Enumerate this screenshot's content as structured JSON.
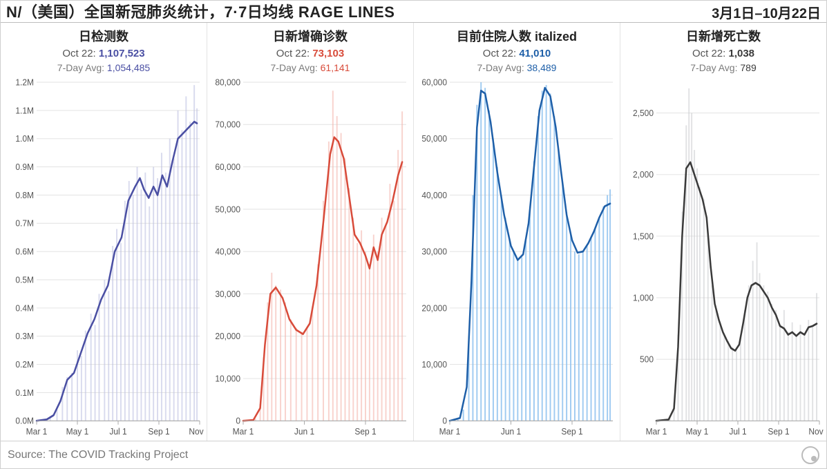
{
  "header": {
    "title_left": "N/（美国）全国新冠肺炎统计，7·7日均线 RAGE LINES",
    "title_right": "3月1日–10月22日"
  },
  "footer": {
    "source": "Source: The COVID Tracking Project"
  },
  "global": {
    "background": "#ffffff",
    "grid_color": "#e5e5e5",
    "axis_text_color": "#555555",
    "x_start": 0,
    "x_end": 240,
    "x_ticks_long": [
      {
        "pos": 0,
        "label": "Mar 1"
      },
      {
        "pos": 60,
        "label": "May 1"
      },
      {
        "pos": 120,
        "label": "Jul 1"
      },
      {
        "pos": 180,
        "label": "Sep 1"
      },
      {
        "pos": 240,
        "label": "Nov 1"
      }
    ],
    "x_ticks_short": [
      {
        "pos": 0,
        "label": "Mar 1"
      },
      {
        "pos": 90,
        "label": "Jun 1"
      },
      {
        "pos": 180,
        "label": "Sep 1"
      }
    ]
  },
  "panels": [
    {
      "id": "tests",
      "type": "area-line",
      "title": "日检测数",
      "current_date": "Oct 22",
      "current_value": "1,107,523",
      "avg_label": "7-Day Avg",
      "avg_value": "1,054,485",
      "accent": "#4a4fa3",
      "fill": "#b9bde0",
      "fill_opacity": 0.55,
      "line_width": 2.5,
      "ymin": 0,
      "ymax": 1200000,
      "yticks": [
        {
          "v": 0,
          "label": "0.0M"
        },
        {
          "v": 100000,
          "label": "0.1M"
        },
        {
          "v": 200000,
          "label": "0.2M"
        },
        {
          "v": 300000,
          "label": "0.3M"
        },
        {
          "v": 400000,
          "label": "0.4M"
        },
        {
          "v": 500000,
          "label": "0.5M"
        },
        {
          "v": 600000,
          "label": "0.6M"
        },
        {
          "v": 700000,
          "label": "0.7M"
        },
        {
          "v": 800000,
          "label": "0.8M"
        },
        {
          "v": 900000,
          "label": "0.9M"
        },
        {
          "v": 1000000,
          "label": "1.0M"
        },
        {
          "v": 1100000,
          "label": "1.1M"
        },
        {
          "v": 1200000,
          "label": "1.2M"
        }
      ],
      "x_ticks": "long",
      "bars": [
        [
          0,
          0
        ],
        [
          10,
          2000
        ],
        [
          20,
          10000
        ],
        [
          30,
          40000
        ],
        [
          38,
          120000
        ],
        [
          45,
          155000
        ],
        [
          52,
          170000
        ],
        [
          60,
          250000
        ],
        [
          66,
          230000
        ],
        [
          72,
          320000
        ],
        [
          80,
          380000
        ],
        [
          86,
          340000
        ],
        [
          92,
          450000
        ],
        [
          100,
          500000
        ],
        [
          106,
          460000
        ],
        [
          112,
          620000
        ],
        [
          118,
          680000
        ],
        [
          124,
          630000
        ],
        [
          130,
          780000
        ],
        [
          136,
          850000
        ],
        [
          142,
          800000
        ],
        [
          148,
          900000
        ],
        [
          154,
          820000
        ],
        [
          160,
          880000
        ],
        [
          166,
          760000
        ],
        [
          172,
          900000
        ],
        [
          178,
          860000
        ],
        [
          184,
          950000
        ],
        [
          190,
          880000
        ],
        [
          196,
          1000000
        ],
        [
          202,
          930000
        ],
        [
          208,
          1100000
        ],
        [
          214,
          1030000
        ],
        [
          220,
          1150000
        ],
        [
          226,
          1060000
        ],
        [
          232,
          1190000
        ],
        [
          236,
          1107523
        ]
      ],
      "line": [
        [
          0,
          0
        ],
        [
          15,
          5000
        ],
        [
          25,
          20000
        ],
        [
          35,
          70000
        ],
        [
          45,
          145000
        ],
        [
          55,
          170000
        ],
        [
          65,
          240000
        ],
        [
          75,
          310000
        ],
        [
          85,
          360000
        ],
        [
          95,
          430000
        ],
        [
          105,
          480000
        ],
        [
          115,
          600000
        ],
        [
          125,
          650000
        ],
        [
          135,
          780000
        ],
        [
          145,
          830000
        ],
        [
          152,
          860000
        ],
        [
          158,
          820000
        ],
        [
          165,
          790000
        ],
        [
          172,
          830000
        ],
        [
          178,
          800000
        ],
        [
          185,
          870000
        ],
        [
          192,
          830000
        ],
        [
          200,
          920000
        ],
        [
          208,
          1000000
        ],
        [
          216,
          1020000
        ],
        [
          224,
          1040000
        ],
        [
          232,
          1060000
        ],
        [
          236,
          1054485
        ]
      ]
    },
    {
      "id": "cases",
      "type": "area-line",
      "title": "日新增确诊数",
      "current_date": "Oct 22",
      "current_value": "73,103",
      "avg_label": "7-Day Avg",
      "avg_value": "61,141",
      "accent": "#d84b3a",
      "fill": "#f3b6ad",
      "fill_opacity": 0.6,
      "line_width": 2.5,
      "ymin": 0,
      "ymax": 80000,
      "yticks": [
        {
          "v": 0,
          "label": "0"
        },
        {
          "v": 10000,
          "label": "10,000"
        },
        {
          "v": 20000,
          "label": "20,000"
        },
        {
          "v": 30000,
          "label": "30,000"
        },
        {
          "v": 40000,
          "label": "40,000"
        },
        {
          "v": 50000,
          "label": "50,000"
        },
        {
          "v": 60000,
          "label": "60,000"
        },
        {
          "v": 70000,
          "label": "70,000"
        },
        {
          "v": 80000,
          "label": "80,000"
        }
      ],
      "x_ticks": "short",
      "bars": [
        [
          0,
          10
        ],
        [
          10,
          60
        ],
        [
          18,
          500
        ],
        [
          25,
          4000
        ],
        [
          30,
          15000
        ],
        [
          36,
          28000
        ],
        [
          42,
          35000
        ],
        [
          48,
          32000
        ],
        [
          55,
          31000
        ],
        [
          62,
          28000
        ],
        [
          70,
          24000
        ],
        [
          78,
          22000
        ],
        [
          86,
          21000
        ],
        [
          94,
          22000
        ],
        [
          102,
          27000
        ],
        [
          110,
          37000
        ],
        [
          118,
          52000
        ],
        [
          126,
          66000
        ],
        [
          132,
          78000
        ],
        [
          138,
          72000
        ],
        [
          144,
          68000
        ],
        [
          150,
          62000
        ],
        [
          156,
          55000
        ],
        [
          162,
          48000
        ],
        [
          168,
          42000
        ],
        [
          174,
          45000
        ],
        [
          180,
          40000
        ],
        [
          186,
          37000
        ],
        [
          192,
          44000
        ],
        [
          198,
          40000
        ],
        [
          204,
          48000
        ],
        [
          210,
          46000
        ],
        [
          216,
          56000
        ],
        [
          222,
          52000
        ],
        [
          228,
          64000
        ],
        [
          234,
          73103
        ]
      ],
      "line": [
        [
          0,
          5
        ],
        [
          15,
          200
        ],
        [
          25,
          3000
        ],
        [
          32,
          18000
        ],
        [
          40,
          30000
        ],
        [
          48,
          31500
        ],
        [
          58,
          29000
        ],
        [
          68,
          24000
        ],
        [
          78,
          21500
        ],
        [
          88,
          20500
        ],
        [
          98,
          23000
        ],
        [
          108,
          32000
        ],
        [
          118,
          47000
        ],
        [
          128,
          63000
        ],
        [
          134,
          67000
        ],
        [
          140,
          66000
        ],
        [
          148,
          62000
        ],
        [
          156,
          53000
        ],
        [
          164,
          44000
        ],
        [
          172,
          42000
        ],
        [
          180,
          39000
        ],
        [
          186,
          36000
        ],
        [
          192,
          41000
        ],
        [
          198,
          38000
        ],
        [
          204,
          44000
        ],
        [
          212,
          47000
        ],
        [
          220,
          52000
        ],
        [
          228,
          58000
        ],
        [
          234,
          61141
        ]
      ]
    },
    {
      "id": "hosp",
      "type": "area-line",
      "title": "目前住院人数 italized",
      "current_date": "Oct 22",
      "current_value": "41,010",
      "avg_label": "7-Day Avg",
      "avg_value": "38,489",
      "accent": "#1e5fa8",
      "fill": "#8fc2ef",
      "fill_opacity": 0.85,
      "line_width": 2.5,
      "ymin": 0,
      "ymax": 60000,
      "yticks": [
        {
          "v": 0,
          "label": "0"
        },
        {
          "v": 10000,
          "label": "10,000"
        },
        {
          "v": 20000,
          "label": "20,000"
        },
        {
          "v": 30000,
          "label": "30,000"
        },
        {
          "v": 40000,
          "label": "40,000"
        },
        {
          "v": 50000,
          "label": "50,000"
        },
        {
          "v": 60000,
          "label": "60,000"
        }
      ],
      "x_ticks": "short",
      "bars": [
        [
          0,
          0
        ],
        [
          12,
          200
        ],
        [
          20,
          2000
        ],
        [
          28,
          15000
        ],
        [
          34,
          40000
        ],
        [
          40,
          56000
        ],
        [
          46,
          60000
        ],
        [
          52,
          59000
        ],
        [
          58,
          55000
        ],
        [
          64,
          50000
        ],
        [
          70,
          45000
        ],
        [
          76,
          40000
        ],
        [
          82,
          36000
        ],
        [
          88,
          32000
        ],
        [
          94,
          30000
        ],
        [
          100,
          28500
        ],
        [
          106,
          29000
        ],
        [
          112,
          32000
        ],
        [
          118,
          38000
        ],
        [
          124,
          46000
        ],
        [
          130,
          54000
        ],
        [
          136,
          58500
        ],
        [
          142,
          59500
        ],
        [
          148,
          58000
        ],
        [
          154,
          54000
        ],
        [
          160,
          48000
        ],
        [
          166,
          42000
        ],
        [
          172,
          37000
        ],
        [
          178,
          33000
        ],
        [
          184,
          30000
        ],
        [
          190,
          29500
        ],
        [
          196,
          30000
        ],
        [
          202,
          31000
        ],
        [
          208,
          32500
        ],
        [
          214,
          34000
        ],
        [
          220,
          36000
        ],
        [
          226,
          38000
        ],
        [
          232,
          40000
        ],
        [
          236,
          41010
        ]
      ],
      "line": [
        [
          0,
          0
        ],
        [
          15,
          500
        ],
        [
          25,
          6000
        ],
        [
          32,
          25000
        ],
        [
          40,
          52000
        ],
        [
          46,
          58500
        ],
        [
          52,
          58000
        ],
        [
          60,
          53000
        ],
        [
          70,
          44000
        ],
        [
          80,
          36500
        ],
        [
          90,
          31000
        ],
        [
          100,
          28500
        ],
        [
          108,
          29500
        ],
        [
          116,
          35000
        ],
        [
          124,
          45000
        ],
        [
          132,
          55000
        ],
        [
          140,
          59000
        ],
        [
          148,
          57500
        ],
        [
          156,
          52000
        ],
        [
          164,
          44000
        ],
        [
          172,
          36500
        ],
        [
          180,
          32000
        ],
        [
          188,
          29800
        ],
        [
          196,
          30000
        ],
        [
          204,
          31500
        ],
        [
          212,
          33500
        ],
        [
          220,
          36000
        ],
        [
          228,
          38000
        ],
        [
          236,
          38489
        ]
      ]
    },
    {
      "id": "deaths",
      "type": "area-line",
      "title": "日新增死亡数",
      "current_date": "Oct 22",
      "current_value": "1,038",
      "avg_label": "7-Day Avg",
      "avg_value": "789",
      "accent": "#3a3a3a",
      "fill": "#c9cbcd",
      "fill_opacity": 0.55,
      "line_width": 2.5,
      "ymin": 0,
      "ymax": 2750,
      "yticks": [
        {
          "v": 500,
          "label": "500"
        },
        {
          "v": 1000,
          "label": "1,000"
        },
        {
          "v": 1500,
          "label": "1,500"
        },
        {
          "v": 2000,
          "label": "2,000"
        },
        {
          "v": 2500,
          "label": "2,500"
        }
      ],
      "x_ticks": "long",
      "bars": [
        [
          0,
          0
        ],
        [
          12,
          2
        ],
        [
          20,
          20
        ],
        [
          26,
          150
        ],
        [
          32,
          700
        ],
        [
          38,
          1700
        ],
        [
          44,
          2400
        ],
        [
          48,
          2700
        ],
        [
          52,
          2500
        ],
        [
          56,
          2200
        ],
        [
          60,
          2050
        ],
        [
          64,
          1900
        ],
        [
          70,
          1800
        ],
        [
          76,
          1500
        ],
        [
          82,
          1100
        ],
        [
          88,
          900
        ],
        [
          94,
          800
        ],
        [
          100,
          700
        ],
        [
          106,
          650
        ],
        [
          112,
          600
        ],
        [
          118,
          580
        ],
        [
          124,
          700
        ],
        [
          130,
          900
        ],
        [
          136,
          1100
        ],
        [
          142,
          1300
        ],
        [
          148,
          1450
        ],
        [
          152,
          1200
        ],
        [
          158,
          1100
        ],
        [
          164,
          1050
        ],
        [
          170,
          950
        ],
        [
          176,
          900
        ],
        [
          182,
          780
        ],
        [
          188,
          900
        ],
        [
          194,
          720
        ],
        [
          200,
          800
        ],
        [
          206,
          700
        ],
        [
          212,
          780
        ],
        [
          218,
          700
        ],
        [
          224,
          820
        ],
        [
          230,
          760
        ],
        [
          236,
          1038
        ]
      ],
      "line": [
        [
          0,
          0
        ],
        [
          18,
          10
        ],
        [
          26,
          100
        ],
        [
          32,
          600
        ],
        [
          38,
          1500
        ],
        [
          44,
          2050
        ],
        [
          50,
          2100
        ],
        [
          56,
          2000
        ],
        [
          62,
          1900
        ],
        [
          68,
          1800
        ],
        [
          74,
          1650
        ],
        [
          80,
          1250
        ],
        [
          86,
          950
        ],
        [
          92,
          820
        ],
        [
          98,
          720
        ],
        [
          104,
          650
        ],
        [
          110,
          590
        ],
        [
          116,
          570
        ],
        [
          122,
          620
        ],
        [
          128,
          800
        ],
        [
          134,
          1000
        ],
        [
          140,
          1100
        ],
        [
          146,
          1120
        ],
        [
          152,
          1100
        ],
        [
          158,
          1050
        ],
        [
          164,
          1000
        ],
        [
          170,
          920
        ],
        [
          176,
          860
        ],
        [
          182,
          770
        ],
        [
          188,
          750
        ],
        [
          194,
          700
        ],
        [
          200,
          720
        ],
        [
          206,
          690
        ],
        [
          212,
          720
        ],
        [
          218,
          700
        ],
        [
          224,
          760
        ],
        [
          230,
          770
        ],
        [
          236,
          789
        ]
      ]
    }
  ]
}
